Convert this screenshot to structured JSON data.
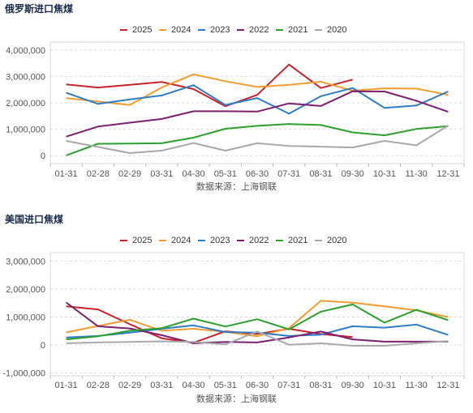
{
  "colors": {
    "2025": "#c8222a",
    "2024": "#f39c2f",
    "2023": "#2e7cc7",
    "2022": "#7b1f6e",
    "2021": "#2ca02c",
    "2020": "#a9a9a9"
  },
  "chart_data": [
    {
      "type": "line",
      "title": "俄罗斯进口焦煤",
      "source": "数据来源：上海钢联",
      "categories": [
        "01-31",
        "02-28",
        "02-29",
        "03-31",
        "04-30",
        "05-31",
        "06-30",
        "07-31",
        "08-31",
        "09-30",
        "10-31",
        "11-30",
        "12-31"
      ],
      "ylim": [
        -300000,
        4300000
      ],
      "yticks": [
        {
          "value": 0,
          "label": "0"
        },
        {
          "value": 1000000,
          "label": "1,000,000"
        },
        {
          "value": 2000000,
          "label": "2,000,000"
        },
        {
          "value": 3000000,
          "label": "3,000,000"
        },
        {
          "value": 4000000,
          "label": "4,000,000"
        }
      ],
      "legend_placement": "top-center",
      "grid": true,
      "series": [
        {
          "name": "2025",
          "values": [
            2700000,
            2580000,
            2680000,
            2790000,
            2520000,
            1870000,
            2300000,
            3450000,
            2560000,
            2880000,
            null,
            null,
            null
          ]
        },
        {
          "name": "2024",
          "values": [
            2180000,
            2050000,
            1920000,
            2580000,
            3080000,
            2820000,
            2600000,
            2680000,
            2800000,
            2460000,
            2550000,
            2540000,
            2300000
          ]
        },
        {
          "name": "2023",
          "values": [
            2380000,
            1960000,
            2130000,
            2280000,
            2670000,
            1920000,
            2180000,
            1590000,
            2250000,
            2560000,
            1810000,
            1900000,
            2430000
          ]
        },
        {
          "name": "2022",
          "values": [
            720000,
            1100000,
            1250000,
            1390000,
            1680000,
            1680000,
            1670000,
            1980000,
            1880000,
            2440000,
            2430000,
            2080000,
            1660000
          ]
        },
        {
          "name": "2021",
          "values": [
            10000,
            450000,
            460000,
            470000,
            680000,
            1020000,
            1130000,
            1200000,
            1160000,
            880000,
            770000,
            1010000,
            1120000
          ]
        },
        {
          "name": "2020",
          "values": [
            560000,
            330000,
            100000,
            190000,
            480000,
            190000,
            470000,
            370000,
            340000,
            310000,
            560000,
            390000,
            1140000
          ]
        }
      ]
    },
    {
      "type": "line",
      "title": "美国进口焦煤",
      "source": "数据来源：上海钢联",
      "categories": [
        "01-31",
        "02-28",
        "02-29",
        "03-31",
        "04-30",
        "05-31",
        "06-30",
        "07-31",
        "08-31",
        "09-30",
        "10-31",
        "11-30",
        "12-31"
      ],
      "ylim": [
        -1100000,
        3300000
      ],
      "yticks": [
        {
          "value": -1000000,
          "label": "-1,000,000"
        },
        {
          "value": 0,
          "label": "0"
        },
        {
          "value": 1000000,
          "label": "1,000,000"
        },
        {
          "value": 2000000,
          "label": "2,000,000"
        },
        {
          "value": 3000000,
          "label": "3,000,000"
        }
      ],
      "legend_placement": "top-center",
      "grid": true,
      "series": [
        {
          "name": "2025",
          "values": [
            1380000,
            1270000,
            740000,
            240000,
            80000,
            490000,
            390000,
            580000,
            390000,
            280000,
            null,
            null,
            null
          ]
        },
        {
          "name": "2024",
          "values": [
            450000,
            680000,
            900000,
            510000,
            580000,
            470000,
            310000,
            600000,
            1580000,
            1510000,
            1380000,
            1240000,
            1000000
          ]
        },
        {
          "name": "2023",
          "values": [
            270000,
            320000,
            440000,
            580000,
            700000,
            460000,
            440000,
            320000,
            370000,
            670000,
            620000,
            730000,
            360000
          ]
        },
        {
          "name": "2022",
          "values": [
            1520000,
            670000,
            590000,
            350000,
            60000,
            110000,
            90000,
            270000,
            480000,
            200000,
            120000,
            120000,
            120000
          ]
        },
        {
          "name": "2021",
          "values": [
            200000,
            310000,
            510000,
            600000,
            940000,
            660000,
            920000,
            560000,
            1190000,
            1450000,
            800000,
            1260000,
            890000
          ]
        },
        {
          "name": "2020",
          "values": [
            60000,
            90000,
            110000,
            130000,
            110000,
            20000,
            480000,
            10000,
            60000,
            -30000,
            -30000,
            60000,
            140000
          ]
        }
      ]
    }
  ]
}
